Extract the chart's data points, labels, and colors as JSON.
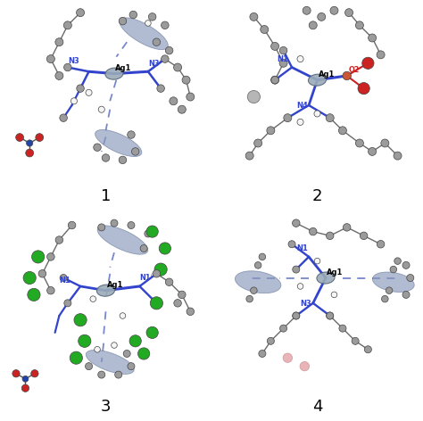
{
  "background_color": "#ffffff",
  "fig_width": 4.74,
  "fig_height": 4.72,
  "dpi": 100,
  "labels": [
    "1",
    "2",
    "3",
    "4"
  ],
  "label_fontsize": 14,
  "gray_color": "#9b9b9b",
  "dark_gray": "#6b6b6b",
  "blue_bond": "#3344cc",
  "ag_color": "#8899aa",
  "dashed_color": "#7788cc",
  "red_color": "#cc2222",
  "green_color": "#22aa22",
  "white_color": "#f5f5f5",
  "nitrate_N": "#2244aa",
  "pink_color": "#e8b4b8"
}
